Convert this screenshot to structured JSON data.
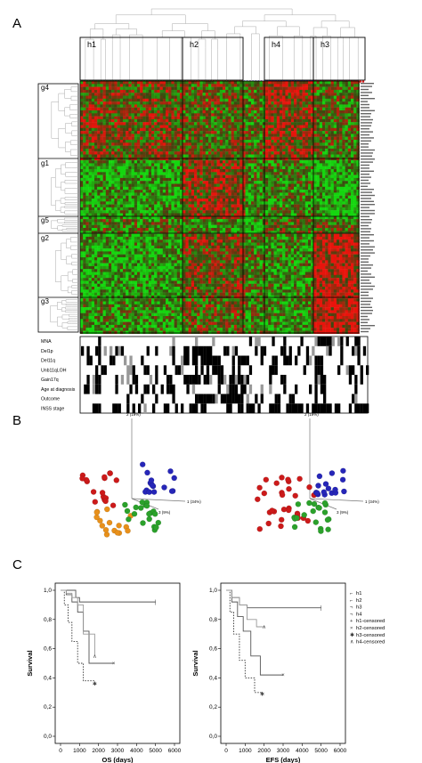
{
  "panels": {
    "a": {
      "letter": "A"
    },
    "b": {
      "letter": "B"
    },
    "c": {
      "letter": "C"
    }
  },
  "heatmap": {
    "column_clusters": [
      "h1",
      "h2",
      "h4",
      "h3"
    ],
    "row_clusters": [
      "g4",
      "g1",
      "g5",
      "g2",
      "g3"
    ],
    "colors": {
      "high": "#e8140c",
      "low": "#15d60f",
      "mid": "#4a4a10"
    },
    "annotation_tracks": [
      "MNA",
      "Del1p",
      "Del11q",
      "Unb11qLOH",
      "Gain17q",
      "Age at diagnosis",
      "Outcome",
      "INSS stage"
    ],
    "sample_dot_colors": {
      "h1": "#1a9a1a",
      "h2": "#e07a10",
      "h4": "#2020c0",
      "h3": "#d01818"
    }
  },
  "pca": {
    "axis_labels": {
      "pc1": "1 (34%)",
      "pc2": "2 (19%)",
      "pc3": "3 (9%)"
    },
    "left_plot": {
      "groups": [
        "red",
        "orange",
        "green",
        "blue"
      ]
    },
    "right_plot": {
      "groups": [
        "red",
        "green",
        "blue"
      ]
    }
  },
  "chart_data": [
    {
      "type": "line",
      "panel": "C-left",
      "xlabel": "OS (days)",
      "ylabel": "Survival",
      "xlim": [
        0,
        6000
      ],
      "ylim": [
        0.0,
        1.0
      ],
      "x_ticks": [
        "0",
        "1000",
        "2000",
        "3000",
        "4000",
        "5000",
        "6000"
      ],
      "y_ticks": [
        "0,0",
        "0,2",
        "0,4",
        "0,6",
        "0,8",
        "1,0"
      ],
      "series": [
        {
          "name": "h1",
          "x": [
            0,
            500,
            800,
            1000,
            5000
          ],
          "y": [
            1.0,
            1.0,
            0.95,
            0.92,
            0.92
          ]
        },
        {
          "name": "h2",
          "x": [
            0,
            300,
            600,
            900,
            1200,
            1500,
            2800
          ],
          "y": [
            1.0,
            0.97,
            0.92,
            0.85,
            0.72,
            0.5,
            0.5
          ]
        },
        {
          "name": "h3",
          "x": [
            0,
            200,
            400,
            600,
            900,
            1200,
            1800
          ],
          "y": [
            1.0,
            0.9,
            0.78,
            0.65,
            0.5,
            0.38,
            0.36
          ]
        },
        {
          "name": "h4",
          "x": [
            0,
            300,
            600,
            900,
            1200,
            1800
          ],
          "y": [
            1.0,
            0.98,
            0.95,
            0.9,
            0.7,
            0.55
          ]
        }
      ]
    },
    {
      "type": "line",
      "panel": "C-right",
      "xlabel": "EFS (days)",
      "ylabel": "Survival",
      "xlim": [
        0,
        6000
      ],
      "ylim": [
        0.0,
        1.0
      ],
      "x_ticks": [
        "0",
        "1000",
        "2000",
        "3000",
        "4000",
        "5000",
        "6000"
      ],
      "y_ticks": [
        "0,0",
        "0,2",
        "0,4",
        "0,6",
        "0,8",
        "1,0"
      ],
      "series": [
        {
          "name": "h1",
          "x": [
            0,
            300,
            700,
            1100,
            1400,
            5000
          ],
          "y": [
            1.0,
            0.95,
            0.9,
            0.88,
            0.88,
            0.88
          ]
        },
        {
          "name": "h2",
          "x": [
            0,
            300,
            600,
            900,
            1300,
            1800,
            3000
          ],
          "y": [
            1.0,
            0.92,
            0.82,
            0.72,
            0.55,
            0.42,
            0.42
          ]
        },
        {
          "name": "h3",
          "x": [
            0,
            200,
            400,
            700,
            1000,
            1500,
            1900
          ],
          "y": [
            1.0,
            0.85,
            0.7,
            0.52,
            0.4,
            0.3,
            0.29
          ]
        },
        {
          "name": "h4",
          "x": [
            0,
            300,
            700,
            1100,
            1600,
            2000
          ],
          "y": [
            1.0,
            0.95,
            0.9,
            0.8,
            0.75,
            0.75
          ]
        }
      ],
      "legend": [
        "h1",
        "h2",
        "h3",
        "h4",
        "h1-censored",
        "h2-censored",
        "h3-censored",
        "h4-censored"
      ]
    }
  ]
}
